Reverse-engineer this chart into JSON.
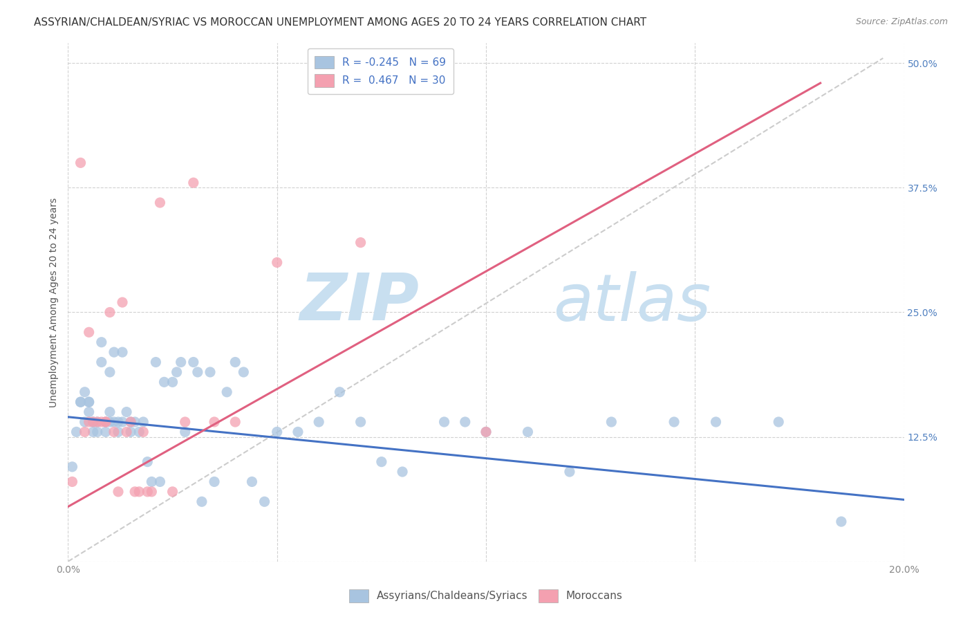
{
  "title": "ASSYRIAN/CHALDEAN/SYRIAC VS MOROCCAN UNEMPLOYMENT AMONG AGES 20 TO 24 YEARS CORRELATION CHART",
  "source": "Source: ZipAtlas.com",
  "ylabel": "Unemployment Among Ages 20 to 24 years",
  "xlim": [
    0.0,
    0.2
  ],
  "ylim": [
    0.0,
    0.52
  ],
  "x_ticks": [
    0.0,
    0.05,
    0.1,
    0.15,
    0.2
  ],
  "x_tick_labels": [
    "0.0%",
    "",
    "",
    "",
    "20.0%"
  ],
  "y_ticks": [
    0.0,
    0.125,
    0.25,
    0.375,
    0.5
  ],
  "y_tick_labels": [
    "",
    "12.5%",
    "25.0%",
    "37.5%",
    "50.0%"
  ],
  "legend_R_blue": "R = -0.245",
  "legend_N_blue": "N = 69",
  "legend_R_pink": "R =  0.467",
  "legend_N_pink": "N = 30",
  "blue_color": "#a8c4e0",
  "pink_color": "#f4a0b0",
  "blue_line_color": "#4472c4",
  "pink_line_color": "#e06080",
  "trend_line_blue": {
    "x0": 0.0,
    "y0": 0.145,
    "x1": 0.2,
    "y1": 0.062
  },
  "trend_line_pink": {
    "x0": 0.0,
    "y0": 0.055,
    "x1": 0.18,
    "y1": 0.48
  },
  "trend_line_gray": {
    "x0": 0.0,
    "y0": 0.0,
    "x1": 0.195,
    "y1": 0.505
  },
  "blue_scatter_x": [
    0.001,
    0.002,
    0.003,
    0.003,
    0.004,
    0.004,
    0.005,
    0.005,
    0.005,
    0.006,
    0.006,
    0.006,
    0.007,
    0.007,
    0.008,
    0.008,
    0.009,
    0.009,
    0.01,
    0.01,
    0.01,
    0.011,
    0.011,
    0.012,
    0.012,
    0.013,
    0.013,
    0.014,
    0.015,
    0.015,
    0.016,
    0.017,
    0.018,
    0.019,
    0.02,
    0.021,
    0.022,
    0.023,
    0.025,
    0.026,
    0.027,
    0.028,
    0.03,
    0.031,
    0.032,
    0.034,
    0.035,
    0.038,
    0.04,
    0.042,
    0.044,
    0.047,
    0.05,
    0.055,
    0.06,
    0.065,
    0.07,
    0.075,
    0.08,
    0.09,
    0.095,
    0.1,
    0.11,
    0.12,
    0.13,
    0.145,
    0.155,
    0.17,
    0.185
  ],
  "blue_scatter_y": [
    0.095,
    0.13,
    0.16,
    0.16,
    0.14,
    0.17,
    0.15,
    0.16,
    0.16,
    0.14,
    0.14,
    0.13,
    0.14,
    0.13,
    0.22,
    0.2,
    0.14,
    0.13,
    0.14,
    0.15,
    0.19,
    0.14,
    0.21,
    0.13,
    0.14,
    0.14,
    0.21,
    0.15,
    0.13,
    0.14,
    0.14,
    0.13,
    0.14,
    0.1,
    0.08,
    0.2,
    0.08,
    0.18,
    0.18,
    0.19,
    0.2,
    0.13,
    0.2,
    0.19,
    0.06,
    0.19,
    0.08,
    0.17,
    0.2,
    0.19,
    0.08,
    0.06,
    0.13,
    0.13,
    0.14,
    0.17,
    0.14,
    0.1,
    0.09,
    0.14,
    0.14,
    0.13,
    0.13,
    0.09,
    0.14,
    0.14,
    0.14,
    0.14,
    0.04
  ],
  "pink_scatter_x": [
    0.001,
    0.003,
    0.004,
    0.005,
    0.005,
    0.006,
    0.007,
    0.008,
    0.009,
    0.009,
    0.01,
    0.011,
    0.012,
    0.013,
    0.014,
    0.015,
    0.016,
    0.017,
    0.018,
    0.019,
    0.02,
    0.022,
    0.025,
    0.028,
    0.03,
    0.035,
    0.04,
    0.05,
    0.07,
    0.1
  ],
  "pink_scatter_y": [
    0.08,
    0.4,
    0.13,
    0.23,
    0.14,
    0.14,
    0.14,
    0.14,
    0.14,
    0.14,
    0.25,
    0.13,
    0.07,
    0.26,
    0.13,
    0.14,
    0.07,
    0.07,
    0.13,
    0.07,
    0.07,
    0.36,
    0.07,
    0.14,
    0.38,
    0.14,
    0.14,
    0.3,
    0.32,
    0.13
  ],
  "watermark_zip": "ZIP",
  "watermark_atlas": "atlas",
  "watermark_color_zip": "#c8dff0",
  "watermark_color_atlas": "#c8dff0",
  "background_color": "#ffffff",
  "grid_color": "#cccccc",
  "title_fontsize": 11,
  "axis_label_fontsize": 10,
  "tick_fontsize": 10,
  "legend_fontsize": 11,
  "source_fontsize": 9
}
